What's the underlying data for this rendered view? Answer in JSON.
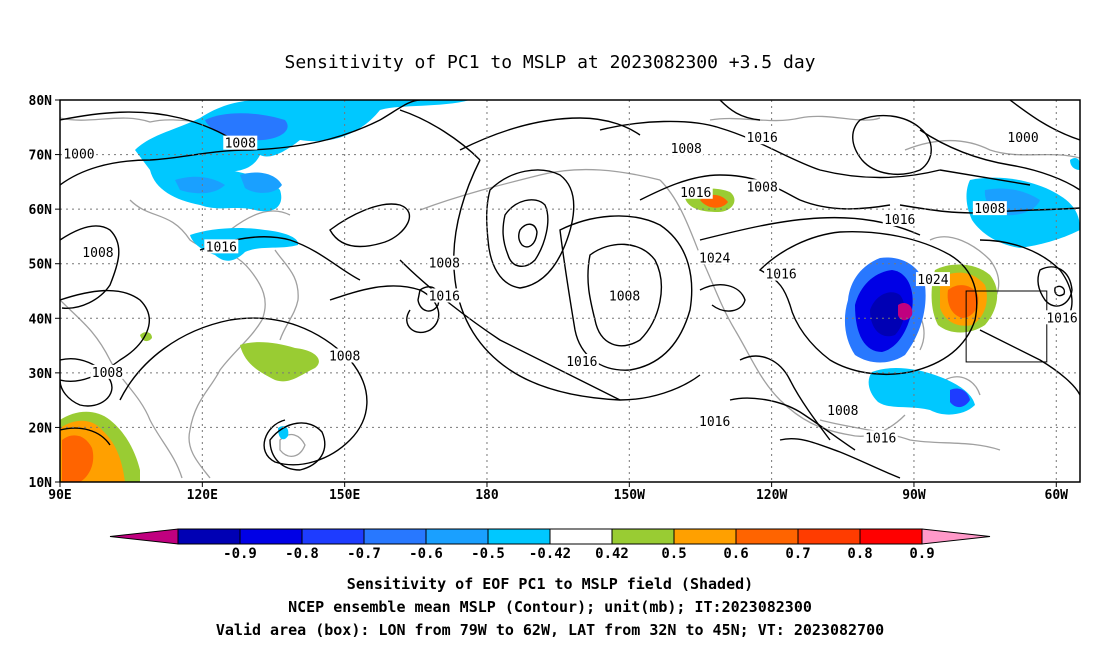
{
  "chart_data": {
    "type": "heatmap",
    "title": "Sensitivity of PC1 to MSLP at 2023082300 +3.5 day",
    "x_ticks": [
      "90E",
      "120E",
      "150E",
      "180",
      "150W",
      "120W",
      "90W",
      "60W"
    ],
    "y_ticks": [
      "80N",
      "70N",
      "60N",
      "50N",
      "40N",
      "30N",
      "20N",
      "10N"
    ],
    "lon_range": [
      90,
      305
    ],
    "lat_range": [
      10,
      80
    ],
    "grid": true,
    "colorbar": {
      "levels": [
        "-0.9",
        "-0.8",
        "-0.7",
        "-0.6",
        "-0.5",
        "-0.42",
        "0.42",
        "0.5",
        "0.6",
        "0.7",
        "0.8",
        "0.9"
      ],
      "colors": [
        "#c0007f",
        "#0000b4",
        "#0000e6",
        "#1e3cff",
        "#2878ff",
        "#1aa0ff",
        "#00c8ff",
        "#ffffff",
        "#99cc33",
        "#ffa000",
        "#ff6400",
        "#ff3c00",
        "#ff0000",
        "#ff99c9"
      ]
    },
    "shaded_regions": [
      {
        "lon": 110,
        "lat": 69,
        "value": -0.5
      },
      {
        "lon": 113,
        "lat": 72,
        "value": -0.6
      },
      {
        "lon": 114,
        "lat": 62,
        "value": -0.5
      },
      {
        "lon": 122,
        "lat": 51,
        "value": -0.5
      },
      {
        "lon": 136,
        "lat": 31,
        "value": 0.5
      },
      {
        "lon": 97,
        "lat": 17,
        "value": 0.6
      },
      {
        "lon": 241,
        "lat": 62,
        "value": 0.6
      },
      {
        "lon": 280,
        "lat": 40,
        "value": -0.7
      },
      {
        "lon": 282,
        "lat": 40,
        "value": -0.9
      },
      {
        "lon": 295,
        "lat": 42,
        "value": 0.7
      },
      {
        "lon": 287,
        "lat": 27,
        "value": -0.5
      },
      {
        "lon": 298,
        "lat": 61,
        "value": -0.5
      }
    ],
    "contour_labels": [
      {
        "text": "1000",
        "lon": 94,
        "lat": 70
      },
      {
        "text": "1008",
        "lon": 128,
        "lat": 72
      },
      {
        "text": "1016",
        "lon": 238,
        "lat": 73
      },
      {
        "text": "1000",
        "lon": 293,
        "lat": 73
      },
      {
        "text": "1008",
        "lon": 222,
        "lat": 71
      },
      {
        "text": "1008",
        "lon": 238,
        "lat": 64
      },
      {
        "text": "1016",
        "lon": 224,
        "lat": 63
      },
      {
        "text": "1008",
        "lon": 286,
        "lat": 60
      },
      {
        "text": "1016",
        "lon": 267,
        "lat": 58
      },
      {
        "text": "1008",
        "lon": 98,
        "lat": 52
      },
      {
        "text": "1016",
        "lon": 124,
        "lat": 53
      },
      {
        "text": "1008",
        "lon": 171,
        "lat": 50
      },
      {
        "text": "1024",
        "lon": 228,
        "lat": 51
      },
      {
        "text": "1016",
        "lon": 242,
        "lat": 48
      },
      {
        "text": "1024",
        "lon": 274,
        "lat": 47
      },
      {
        "text": "1016",
        "lon": 171,
        "lat": 44
      },
      {
        "text": "1008",
        "lon": 209,
        "lat": 44
      },
      {
        "text": "1016",
        "lon": 308,
        "lat": 40
      },
      {
        "text": "1008",
        "lon": 100,
        "lat": 30
      },
      {
        "text": "1008",
        "lon": 150,
        "lat": 33
      },
      {
        "text": "1016",
        "lon": 200,
        "lat": 32
      },
      {
        "text": "1016",
        "lon": 228,
        "lat": 21
      },
      {
        "text": "1008",
        "lon": 255,
        "lat": 23
      },
      {
        "text": "1016",
        "lon": 263,
        "lat": 18
      }
    ],
    "valid_box": {
      "lon_min": 281,
      "lon_max": 298,
      "lat_min": 32,
      "lat_max": 45
    }
  },
  "caption": {
    "line1": "Sensitivity of EOF PC1 to MSLP field (Shaded)",
    "line2": "NCEP ensemble mean MSLP (Contour); unit(mb); IT:2023082300",
    "line3": "Valid area (box): LON from 79W to 62W, LAT from 32N to 45N; VT: 2023082700"
  },
  "colors": {
    "contour": "#000000",
    "coastline": "#a0a0a0",
    "grid": "#777777"
  }
}
